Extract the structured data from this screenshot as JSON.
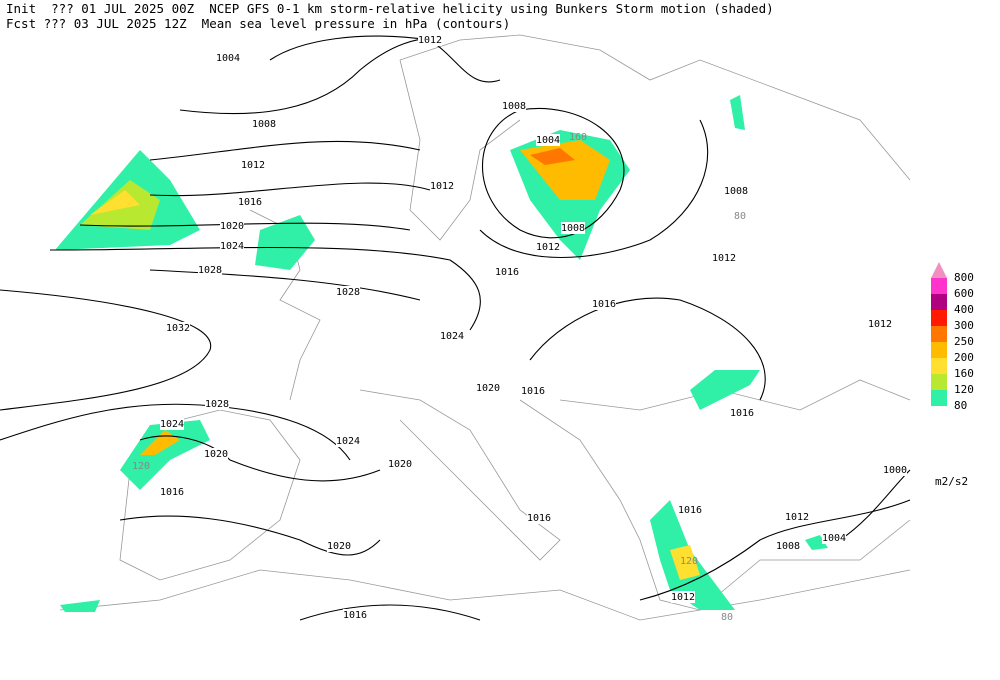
{
  "header": {
    "line1": "Init  ??? 01 JUL 2025 00Z  NCEP GFS 0-1 km storm-relative helicity using Bunkers Storm motion (shaded)",
    "line2": "Fcst ??? 03 JUL 2025 12Z  Mean sea level pressure in hPa (contours)"
  },
  "contour_labels": [
    1012,
    1004,
    1008,
    1012,
    1016,
    1020,
    1024,
    1028,
    1028,
    1032,
    1012,
    1008,
    1004,
    1008,
    1012,
    1016,
    1016,
    1012,
    1008,
    1012,
    1024,
    1020,
    1016,
    1016,
    1028,
    1024,
    1020,
    1024,
    1020,
    1016,
    1016,
    1016,
    1012,
    1008,
    1004,
    1000,
    1020,
    1016,
    1012
  ],
  "helicity_labels": [
    160,
    80,
    120,
    80,
    120
  ],
  "legend": {
    "levels": [
      800,
      600,
      400,
      300,
      250,
      200,
      160,
      120,
      80
    ],
    "colors": [
      "#f090c0",
      "#ff33cc",
      "#b00080",
      "#ff1a00",
      "#ff7700",
      "#ffbb00",
      "#ffe030",
      "#b8e830",
      "#30f0a8"
    ],
    "unit": "m2/s2"
  }
}
